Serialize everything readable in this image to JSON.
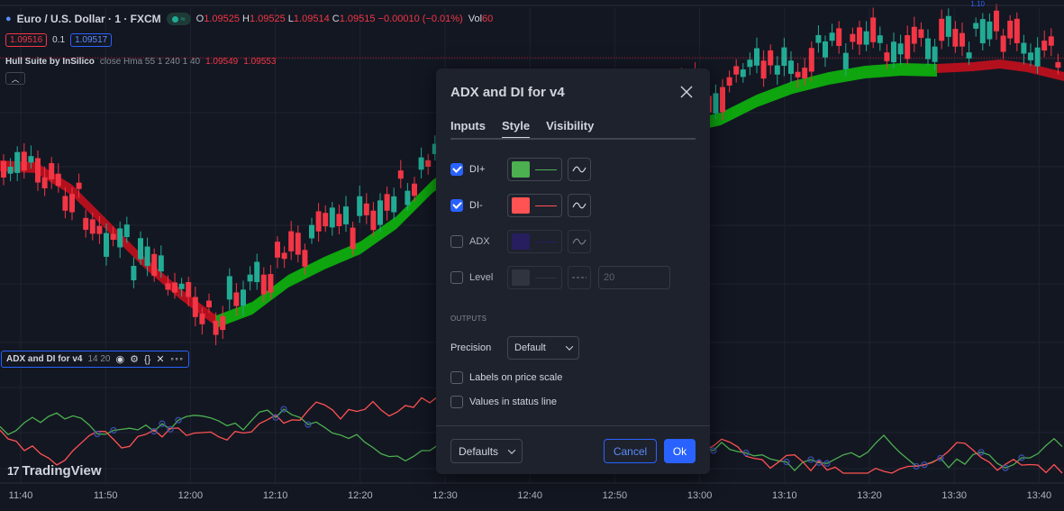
{
  "header": {
    "symbol": "Euro / U.S. Dollar · 1 · FXCM",
    "status_wave": "≈",
    "ohlc": [
      {
        "k": "O",
        "v": "1.09525"
      },
      {
        "k": "H",
        "v": "1.09525"
      },
      {
        "k": "L",
        "v": "1.09514"
      },
      {
        "k": "C",
        "v": "1.09515"
      },
      {
        "k": "",
        "v": "−0.00010 (−0.01%)"
      }
    ],
    "vol_key": "Vol",
    "vol_value": "60",
    "sell_price": "1.09516",
    "spread": "0.1",
    "buy_price": "1.09517",
    "top_right": "1.10"
  },
  "hull": {
    "name": "Hull Suite by InSilico",
    "args": "close Hma 55 1 240 1 40",
    "value1": "1.09549",
    "value2": "1.09553"
  },
  "adx_legend": {
    "name": "ADX and DI for v4",
    "args": "14 20",
    "icons": [
      "eye-icon",
      "gear-icon",
      "code-icon",
      "close-icon",
      "more-icon"
    ],
    "icon_glyphs": {
      "eye": "◉",
      "gear": "⚙",
      "code": "{}",
      "close": "✕",
      "more": "∘∘∘"
    }
  },
  "branding": {
    "mark": "17",
    "name": "TradingView"
  },
  "time_axis": [
    "11:40",
    "11:50",
    "12:00",
    "12:10",
    "12:20",
    "12:30",
    "12:40",
    "12:50",
    "13:00",
    "13:10",
    "13:20",
    "13:30",
    "13:40"
  ],
  "dialog": {
    "title": "ADX and DI for v4",
    "tabs": [
      "Inputs",
      "Style",
      "Visibility"
    ],
    "active_tab": "Style",
    "plots": [
      {
        "label": "DI+",
        "checked": true,
        "color": "#4caf50"
      },
      {
        "label": "DI-",
        "checked": true,
        "color": "#ff5252"
      },
      {
        "label": "ADX",
        "checked": false,
        "color": "#311b92"
      },
      {
        "label": "Level",
        "checked": false,
        "color": "#434651",
        "value": "20"
      }
    ],
    "outputs_title": "OUTPUTS",
    "precision_label": "Precision",
    "precision_value": "Default",
    "checkbox_labels": {
      "labels_on_price_scale": "Labels on price scale",
      "values_in_status_line": "Values in status line"
    },
    "defaults_label": "Defaults",
    "cancel_label": "Cancel",
    "ok_label": "Ok"
  },
  "colors": {
    "up": "#22ab94",
    "down": "#f23645",
    "hull_up": "#0ea50e",
    "hull_down": "#b3101e",
    "di_plus": "#4caf50",
    "di_minus": "#ff5252",
    "accent": "#2962ff",
    "background": "#131722"
  }
}
